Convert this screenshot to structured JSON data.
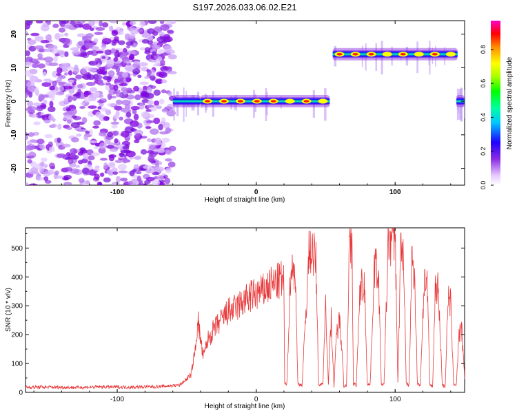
{
  "title": "S197.2026.033.06.02.E21",
  "chart_data": [
    {
      "type": "heatmap",
      "xlabel": "Height of straight line (km)",
      "ylabel": "Frequency (Hz)",
      "xlim": [
        -166,
        150
      ],
      "ylim": [
        -25,
        24
      ],
      "xticks": [
        "-100",
        "0",
        "100"
      ],
      "xtick_values": [
        -100,
        0,
        100
      ],
      "yticks": [
        "20",
        "10",
        "0",
        "-10",
        "-20"
      ],
      "ytick_values": [
        20,
        10,
        0,
        -10,
        -20
      ],
      "colorbar": {
        "label": "Normalized spectral amplitude",
        "range": [
          0,
          0.97
        ],
        "ticks": [
          "0.0",
          "0.2",
          "0.4",
          "0.6",
          "0.8"
        ],
        "tick_values": [
          0.0,
          0.2,
          0.4,
          0.6,
          0.8
        ]
      },
      "segments": [
        {
          "x_range": [
            -166,
            -60
          ],
          "description": "broadband noise",
          "freq_hz": null
        },
        {
          "x_range": [
            -60,
            -40
          ],
          "freq_hz": 0,
          "amplitude": 0.3
        },
        {
          "x_range": [
            -40,
            53
          ],
          "freq_hz": 0,
          "amplitude": 0.95
        },
        {
          "x_range": [
            55,
            145
          ],
          "freq_hz": 14,
          "amplitude": 0.95
        },
        {
          "x_range": [
            144,
            150
          ],
          "freq_hz": 0,
          "amplitude": 0.4
        }
      ]
    },
    {
      "type": "line",
      "xlabel": "Height of straight line (km)",
      "ylabel": "SNR (10 * v/v)",
      "xlim": [
        -166,
        150
      ],
      "ylim": [
        0,
        570
      ],
      "xticks": [
        "-100",
        "0",
        "100"
      ],
      "xtick_values": [
        -100,
        0,
        100
      ],
      "yticks": [
        "0",
        "100",
        "200",
        "300",
        "400",
        "500"
      ],
      "ytick_values": [
        0,
        100,
        200,
        300,
        400,
        500
      ],
      "series": [
        {
          "name": "SNR",
          "color": "#e8383a",
          "x": [
            -166,
            -150,
            -130,
            -110,
            -90,
            -70,
            -55,
            -47,
            -44,
            -42,
            -40,
            -38,
            -35,
            -30,
            -25,
            -20,
            -15,
            -10,
            -5,
            0,
            5,
            10,
            15,
            18,
            20,
            20.5,
            22,
            25,
            26,
            28,
            30,
            33,
            38,
            40,
            43,
            45,
            48,
            50,
            52,
            54,
            56,
            58,
            60,
            62,
            63,
            65,
            67,
            69,
            70,
            72,
            75,
            78,
            80,
            82,
            85,
            88,
            90,
            92,
            95,
            98,
            100,
            102,
            104,
            106,
            108,
            110,
            112,
            114,
            116,
            118,
            121,
            123,
            125,
            127,
            129,
            131,
            134,
            136,
            138,
            140,
            142,
            144,
            146,
            148,
            150
          ],
          "values": [
            18,
            18,
            17,
            19,
            18,
            20,
            25,
            60,
            140,
            250,
            180,
            120,
            180,
            220,
            250,
            280,
            290,
            310,
            330,
            340,
            350,
            370,
            380,
            390,
            380,
            30,
            25,
            450,
            420,
            430,
            30,
            25,
            480,
            500,
            450,
            25,
            30,
            320,
            30,
            260,
            20,
            210,
            250,
            150,
            20,
            25,
            500,
            480,
            30,
            25,
            380,
            360,
            30,
            25,
            440,
            420,
            30,
            25,
            520,
            530,
            560,
            30,
            500,
            490,
            30,
            25,
            460,
            420,
            30,
            25,
            390,
            380,
            25,
            20,
            380,
            360,
            25,
            20,
            320,
            310,
            30,
            25,
            200,
            210,
            45
          ]
        }
      ]
    }
  ]
}
